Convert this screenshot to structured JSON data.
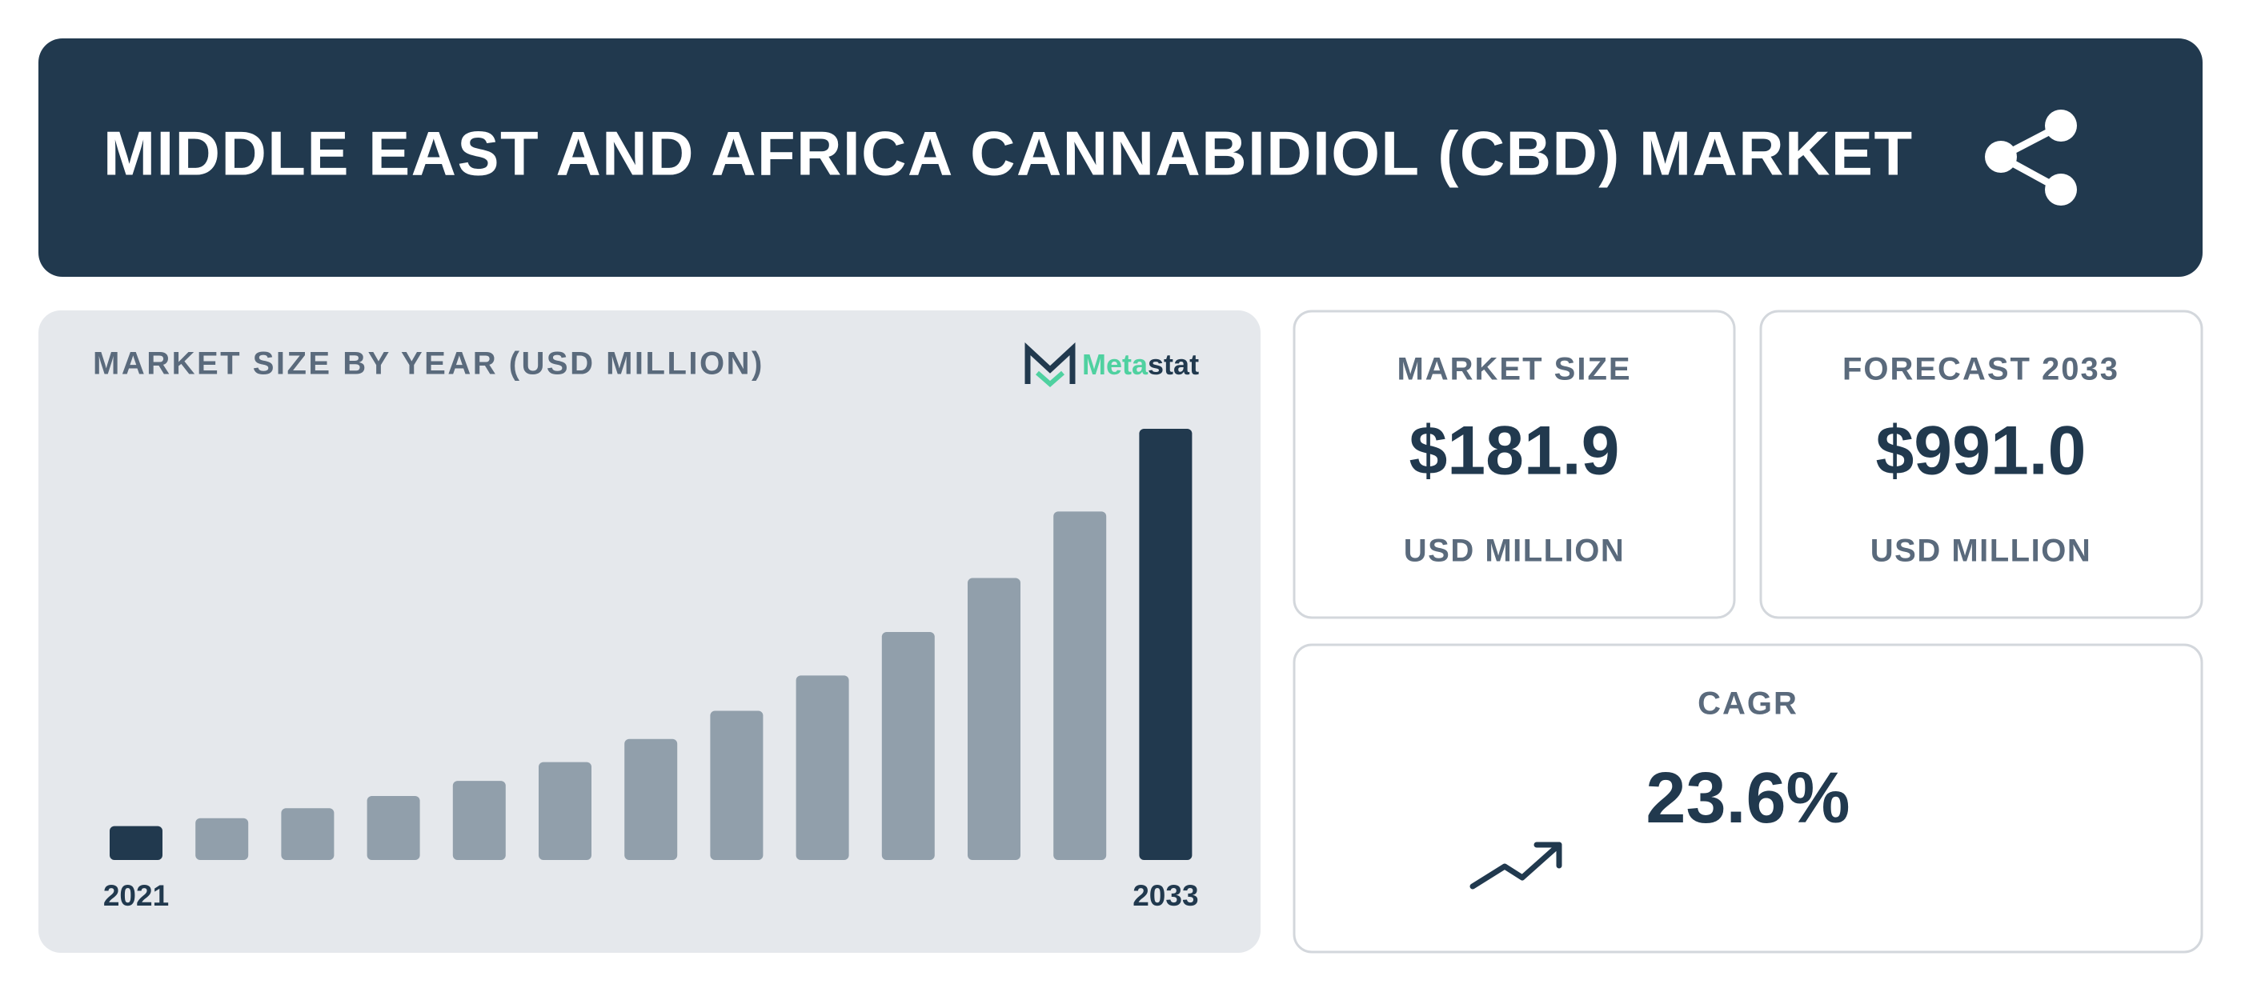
{
  "header": {
    "title": "MIDDLE EAST AND AFRICA CANNABIDIOL (CBD) MARKET"
  },
  "brand": [
    "Meta",
    "stat"
  ],
  "chart_data": {
    "type": "bar",
    "title": "MARKET SIZE BY YEAR (USD MILLION)",
    "categories": [
      "2021",
      null,
      null,
      null,
      null,
      null,
      null,
      null,
      null,
      null,
      null,
      null,
      "2033"
    ],
    "values": [
      78,
      96,
      119,
      147,
      181.9,
      225,
      278,
      343,
      424,
      524,
      648,
      801,
      991.0
    ],
    "color": "#919fab",
    "highlight_color": "#21394e"
  },
  "cards": [
    {
      "label": "MARKET SIZE",
      "value": "$181.9",
      "unit": "USD MILLION"
    },
    {
      "label": "FORECAST 2033",
      "value": "$991.0",
      "unit": "USD MILLION"
    },
    {
      "label": "CAGR",
      "value": "23.6%"
    }
  ]
}
